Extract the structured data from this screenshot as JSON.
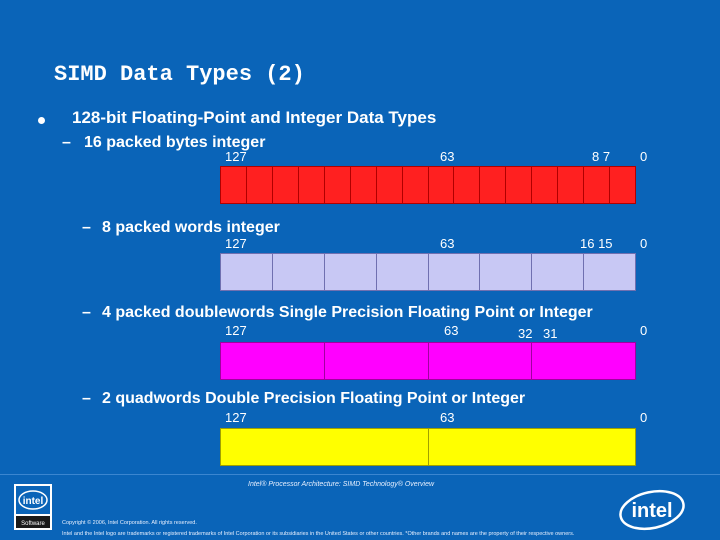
{
  "slide": {
    "title": "SIMD Data Types (2)",
    "bullet": "128-bit Floating-Point and Integer Data Types"
  },
  "rows": [
    {
      "dash": "–",
      "label": "16 packed bytes integer",
      "bits": [
        "127",
        "63",
        "8 7",
        "0"
      ],
      "cells": 16,
      "color": "#ff2020",
      "border": "#b00000"
    },
    {
      "dash": "–",
      "label": "8 packed words integer",
      "bits": [
        "127",
        "63",
        "16 15",
        "0"
      ],
      "cells": 8,
      "color": "#c8c8f4",
      "border": "#7070b0"
    },
    {
      "dash": "–",
      "label": "4 packed doublewords Single Precision Floating Point or Integer",
      "bits": [
        "127",
        "63",
        "32",
        "31",
        "0"
      ],
      "cells": 4,
      "color": "#ff00ff",
      "border": "#a000a0"
    },
    {
      "dash": "–",
      "label": "2 quadwords Double Precision Floating Point or Integer",
      "bits": [
        "127",
        "63",
        "0"
      ],
      "cells": 2,
      "color": "#ffff00",
      "border": "#a0a000"
    }
  ],
  "footer": {
    "caption": "Intel® Processor Architecture: SIMD Technology® Overview",
    "copyright": "Copyright © 2006, Intel Corporation. All rights reserved.",
    "trademark": "Intel and the Intel logo are trademarks or registered trademarks of Intel Corporation or its subsidiaries in the United States or other countries. *Other brands and names are the property of their respective owners.",
    "logo_left_text": "intel",
    "logo_left_sub": "Software",
    "logo_right_text": "intel"
  }
}
